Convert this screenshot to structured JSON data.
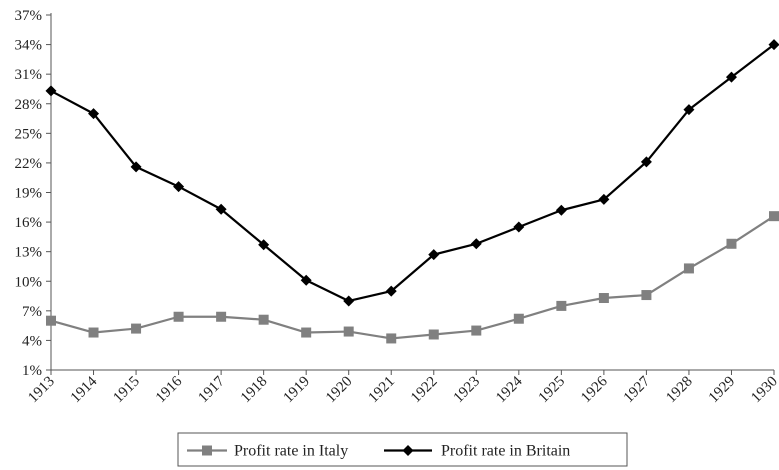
{
  "chart_data": {
    "type": "line",
    "title": "",
    "xlabel": "",
    "ylabel": "",
    "categories": [
      "1913",
      "1914",
      "1915",
      "1916",
      "1917",
      "1918",
      "1919",
      "1920",
      "1921",
      "1922",
      "1923",
      "1924",
      "1925",
      "1926",
      "1927",
      "1928",
      "1929",
      "1930"
    ],
    "y_ticks": [
      "1%",
      "4%",
      "7%",
      "10%",
      "13%",
      "16%",
      "19%",
      "22%",
      "25%",
      "28%",
      "31%",
      "34%",
      "37%"
    ],
    "ylim": [
      1,
      37
    ],
    "grid": false,
    "legend_position": "bottom",
    "series": [
      {
        "name": "Profit rate in Italy",
        "color": "#808080",
        "marker": "square",
        "values": [
          6.0,
          4.8,
          5.2,
          6.4,
          6.4,
          6.1,
          4.8,
          4.9,
          4.2,
          4.6,
          5.0,
          6.2,
          7.5,
          8.3,
          8.6,
          11.3,
          13.8,
          16.6
        ]
      },
      {
        "name": "Profit rate in Britain",
        "color": "#000000",
        "marker": "diamond",
        "values": [
          29.3,
          27.0,
          21.6,
          19.6,
          17.3,
          13.7,
          10.1,
          8.0,
          9.0,
          12.7,
          13.8,
          15.5,
          17.2,
          18.3,
          22.1,
          27.4,
          30.7,
          34.0
        ]
      }
    ]
  }
}
